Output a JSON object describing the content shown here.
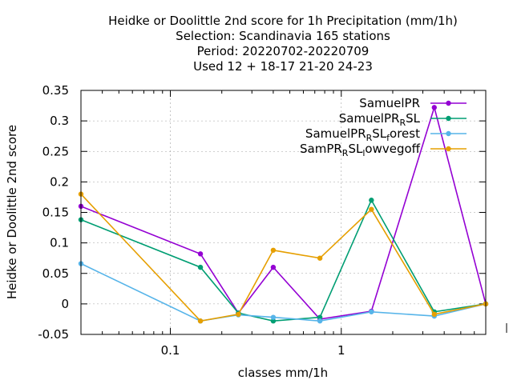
{
  "chart_data": {
    "type": "line",
    "title_lines": [
      "Heidke or Doolittle 2nd score  for 1h Precipitation (mm/1h)",
      "Selection: Scandinavia    165 stations",
      "Period: 20220702-20220709",
      "Used  12 + 18-17 21-20 24-23"
    ],
    "xlabel": "classes mm/1h",
    "ylabel": "Heidke or Doolittle 2nd score",
    "x_scale": "log",
    "xlim": [
      0.03,
      7
    ],
    "ylim": [
      -0.05,
      0.35
    ],
    "y_ticks": [
      -0.05,
      0,
      0.05,
      0.1,
      0.15,
      0.2,
      0.25,
      0.3,
      0.35
    ],
    "y_tick_labels": [
      "-0.05",
      "0",
      "0.05",
      "0.1",
      "0.15",
      "0.2",
      "0.25",
      "0.3",
      "0.35"
    ],
    "x_ticks": [
      0.1,
      1
    ],
    "x_tick_labels": [
      "0.1",
      "1"
    ],
    "grid": true,
    "legend_position": "top-right",
    "x": [
      0.03,
      0.15,
      0.25,
      0.4,
      0.75,
      1.5,
      3.5,
      7
    ],
    "series": [
      {
        "legend_parts": [
          {
            "t": "SamuelPR",
            "sub": false
          }
        ],
        "color": "#9400d3",
        "values": [
          0.16,
          0.082,
          -0.015,
          0.06,
          -0.025,
          -0.012,
          0.322,
          0.0
        ]
      },
      {
        "legend_parts": [
          {
            "t": "SamuelPR",
            "sub": false
          },
          {
            "t": "R",
            "sub": true
          },
          {
            "t": "SL",
            "sub": false
          }
        ],
        "color": "#009e73",
        "values": [
          0.138,
          0.06,
          -0.015,
          -0.028,
          -0.022,
          0.17,
          -0.013,
          0.0
        ]
      },
      {
        "legend_parts": [
          {
            "t": "SamuelPR",
            "sub": false
          },
          {
            "t": "R",
            "sub": true
          },
          {
            "t": "SL",
            "sub": false
          },
          {
            "t": "f",
            "sub": true
          },
          {
            "t": "orest",
            "sub": false
          }
        ],
        "color": "#56b4e9",
        "values": [
          0.066,
          -0.028,
          -0.018,
          -0.022,
          -0.028,
          -0.013,
          -0.02,
          0.0
        ]
      },
      {
        "legend_parts": [
          {
            "t": "SamPR",
            "sub": false
          },
          {
            "t": "R",
            "sub": true
          },
          {
            "t": "SL",
            "sub": false
          },
          {
            "t": "l",
            "sub": true
          },
          {
            "t": "owvegoff",
            "sub": false
          }
        ],
        "color": "#e69f00",
        "values": [
          0.18,
          -0.028,
          -0.017,
          0.088,
          0.075,
          0.155,
          -0.017,
          0.0
        ]
      }
    ]
  }
}
